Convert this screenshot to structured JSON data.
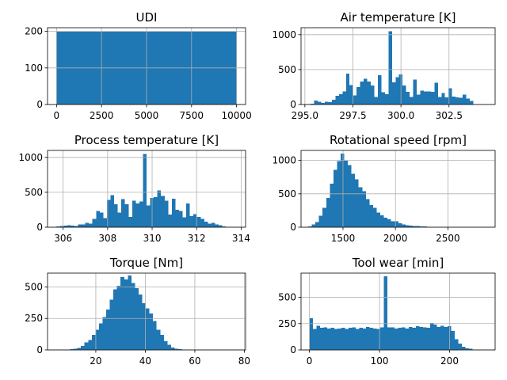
{
  "chart_data": [
    {
      "type": "bar",
      "title": "UDI",
      "xlim": [
        -500,
        10500
      ],
      "ylim": [
        0,
        210
      ],
      "xticks": [
        0,
        2500,
        5000,
        7500,
        10000
      ],
      "xtick_labels": [
        "0",
        "2500",
        "5000",
        "7500",
        "10000"
      ],
      "yticks": [
        0,
        100,
        200
      ],
      "ytick_labels": [
        "0",
        "100",
        "200"
      ],
      "grid": true,
      "color": "#1f77b4",
      "bins": {
        "start": 1,
        "end": 10000,
        "counts": [
          200,
          200,
          200,
          200,
          200,
          200,
          200,
          200,
          200,
          200,
          200,
          200,
          200,
          200,
          200,
          200,
          200,
          200,
          200,
          200,
          200,
          200,
          200,
          200,
          200,
          200,
          200,
          200,
          200,
          200,
          200,
          200,
          200,
          200,
          200,
          200,
          200,
          200,
          200,
          200,
          200,
          200,
          200,
          200,
          200,
          200,
          200,
          200,
          200,
          200
        ]
      }
    },
    {
      "type": "bar",
      "title": "Air temperature [K]",
      "xlim": [
        294.8,
        304.9
      ],
      "ylim": [
        0,
        1100
      ],
      "xticks": [
        295.0,
        297.5,
        300.0,
        302.5
      ],
      "xtick_labels": [
        "295.0",
        "297.5",
        "300.0",
        "302.5"
      ],
      "yticks": [
        0,
        500,
        1000
      ],
      "ytick_labels": [
        "0",
        "500",
        "1000"
      ],
      "grid": true,
      "color": "#1f77b4",
      "bins": {
        "start": 295.3,
        "end": 304.5,
        "counts": [
          10,
          55,
          40,
          20,
          40,
          35,
          70,
          125,
          150,
          190,
          440,
          280,
          130,
          250,
          330,
          370,
          330,
          270,
          110,
          420,
          175,
          150,
          1050,
          320,
          390,
          430,
          270,
          180,
          110,
          360,
          140,
          200,
          190,
          185,
          180,
          310,
          110,
          165,
          100,
          230,
          115,
          100,
          95,
          140,
          85,
          50,
          0,
          0,
          0,
          0
        ]
      }
    },
    {
      "type": "bar",
      "title": "Process temperature [K]",
      "xlim": [
        305.3,
        314.2
      ],
      "ylim": [
        0,
        1100
      ],
      "xticks": [
        306,
        308,
        310,
        312,
        314
      ],
      "xtick_labels": [
        "306",
        "308",
        "310",
        "312",
        "314"
      ],
      "yticks": [
        0,
        500,
        1000
      ],
      "ytick_labels": [
        "0",
        "500",
        "1000"
      ],
      "grid": true,
      "color": "#1f77b4",
      "bins": {
        "start": 305.7,
        "end": 313.8,
        "counts": [
          10,
          15,
          20,
          30,
          20,
          15,
          40,
          40,
          60,
          50,
          120,
          230,
          210,
          130,
          390,
          460,
          330,
          210,
          400,
          330,
          150,
          380,
          340,
          370,
          1050,
          310,
          420,
          430,
          530,
          450,
          380,
          180,
          410,
          250,
          230,
          140,
          340,
          160,
          190,
          150,
          120,
          80,
          50,
          60,
          40,
          30,
          10,
          5,
          0,
          0
        ]
      }
    },
    {
      "type": "bar",
      "title": "Rotational speed [rpm]",
      "xlim": [
        1100,
        2950
      ],
      "ylim": [
        0,
        1150
      ],
      "xticks": [
        1500,
        2000,
        2500
      ],
      "xtick_labels": [
        "1500",
        "2000",
        "2500"
      ],
      "yticks": [
        0,
        500,
        1000
      ],
      "ytick_labels": [
        "0",
        "500",
        "1000"
      ],
      "grid": true,
      "color": "#1f77b4",
      "bins": {
        "start": 1168,
        "end": 2886,
        "counts": [
          10,
          40,
          80,
          170,
          290,
          440,
          650,
          860,
          990,
          1100,
          1000,
          930,
          800,
          720,
          600,
          540,
          420,
          330,
          290,
          220,
          180,
          140,
          120,
          90,
          90,
          60,
          40,
          30,
          25,
          20,
          15,
          10,
          10,
          5,
          5,
          5,
          3,
          3,
          3,
          2,
          2,
          2,
          1,
          1,
          1,
          1,
          1,
          1,
          0,
          0
        ]
      }
    },
    {
      "type": "bar",
      "title": "Torque [Nm]",
      "xlim": [
        0.5,
        80.5
      ],
      "ylim": [
        0,
        610
      ],
      "xticks": [
        20,
        40,
        60,
        80
      ],
      "xtick_labels": [
        "20",
        "40",
        "60",
        "80"
      ],
      "yticks": [
        0,
        250,
        500
      ],
      "ytick_labels": [
        "0",
        "250",
        "500"
      ],
      "grid": true,
      "color": "#1f77b4",
      "bins": {
        "start": 3.8,
        "end": 76.6,
        "counts": [
          2,
          2,
          2,
          3,
          5,
          8,
          15,
          30,
          60,
          80,
          120,
          160,
          210,
          260,
          320,
          400,
          480,
          510,
          580,
          560,
          590,
          530,
          490,
          440,
          370,
          330,
          290,
          230,
          160,
          120,
          70,
          40,
          20,
          10,
          5,
          3,
          2,
          0,
          0,
          0,
          0,
          0,
          0,
          0,
          0,
          0,
          0,
          0,
          0,
          0
        ]
      }
    },
    {
      "type": "bar",
      "title": "Tool wear [min]",
      "xlim": [
        -12,
        265
      ],
      "ylim": [
        0,
        730
      ],
      "xticks": [
        0,
        100,
        200
      ],
      "xtick_labels": [
        "0",
        "100",
        "200"
      ],
      "yticks": [
        0,
        250,
        500
      ],
      "ytick_labels": [
        "0",
        "250",
        "500"
      ],
      "grid": true,
      "color": "#1f77b4",
      "bins": {
        "start": 0,
        "end": 253,
        "counts": [
          300,
          200,
          230,
          210,
          215,
          205,
          210,
          200,
          205,
          210,
          200,
          210,
          215,
          200,
          210,
          205,
          220,
          210,
          205,
          200,
          215,
          700,
          215,
          215,
          205,
          210,
          215,
          205,
          220,
          210,
          225,
          220,
          215,
          210,
          255,
          240,
          220,
          230,
          220,
          225,
          180,
          100,
          60,
          30,
          15,
          10,
          5,
          0,
          0,
          0
        ]
      }
    }
  ]
}
